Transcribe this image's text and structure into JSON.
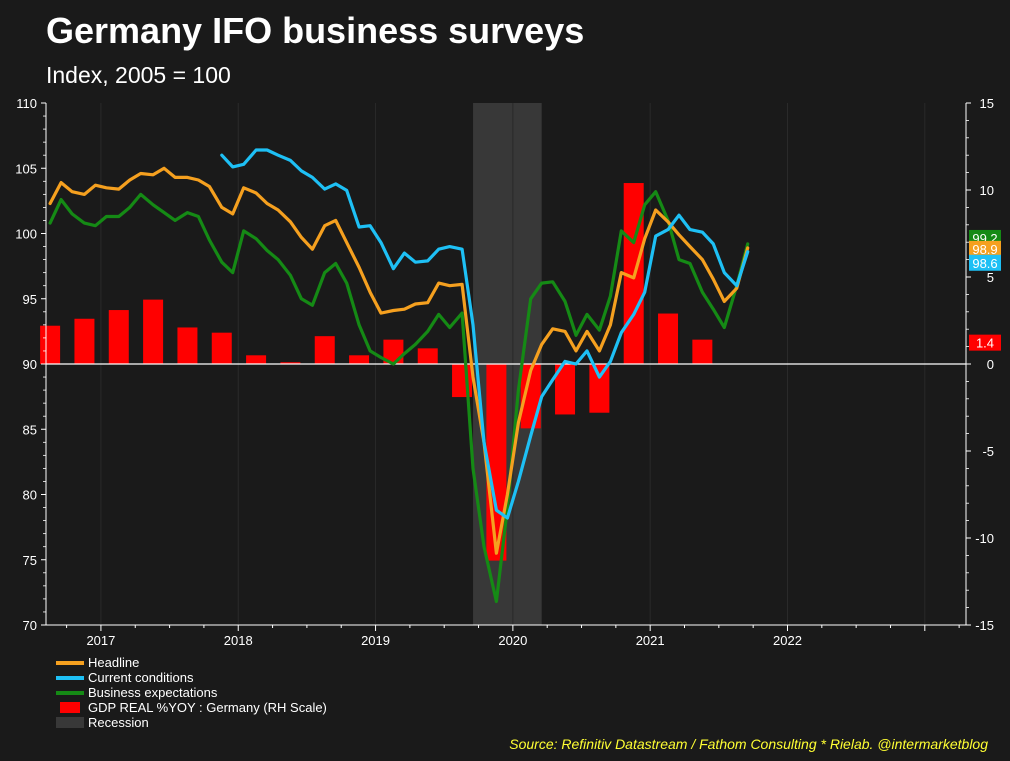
{
  "title": "Germany IFO business surveys",
  "subtitle": "Index, 2005 = 100",
  "source": "Source: Refinitiv Datastream / Fathom Consulting * Rielab. @intermarketblog",
  "chart_data": {
    "type": "line",
    "left_axis": {
      "min": 70,
      "max": 110,
      "ticks": [
        70,
        75,
        80,
        85,
        90,
        95,
        100,
        105,
        110
      ]
    },
    "right_axis": {
      "min": -15,
      "max": 15,
      "ticks": [
        -15,
        -10,
        -5,
        0,
        5,
        10,
        15
      ]
    },
    "x_axis": {
      "min": 2016.6,
      "max": 2023.3,
      "ticks": [
        2017,
        2018,
        2019,
        2020,
        2021,
        2022
      ],
      "tick_labels": [
        "2017",
        "2018",
        "2019",
        "2020",
        "2021",
        "2022"
      ]
    },
    "recession": {
      "label": "Recession",
      "start": 2019.71,
      "end": 2020.21,
      "color": "#383838"
    },
    "series": [
      {
        "name": "Headline",
        "color": "#f5a01f",
        "last_label": "98.9",
        "points": [
          [
            2016.63,
            102.3
          ],
          [
            2016.71,
            103.9
          ],
          [
            2016.79,
            103.2
          ],
          [
            2016.88,
            103.0
          ],
          [
            2016.96,
            103.7
          ],
          [
            2017.04,
            103.5
          ],
          [
            2017.13,
            103.4
          ],
          [
            2017.21,
            104.1
          ],
          [
            2017.29,
            104.6
          ],
          [
            2017.38,
            104.5
          ],
          [
            2017.46,
            105.0
          ],
          [
            2017.54,
            104.3
          ],
          [
            2017.63,
            104.3
          ],
          [
            2017.71,
            104.1
          ],
          [
            2017.79,
            103.6
          ],
          [
            2017.88,
            102.0
          ],
          [
            2017.96,
            101.5
          ],
          [
            2018.04,
            103.5
          ],
          [
            2018.13,
            103.1
          ],
          [
            2018.21,
            102.3
          ],
          [
            2018.29,
            101.8
          ],
          [
            2018.38,
            100.9
          ],
          [
            2018.46,
            99.7
          ],
          [
            2018.54,
            98.8
          ],
          [
            2018.63,
            100.6
          ],
          [
            2018.71,
            101.0
          ],
          [
            2018.79,
            99.3
          ],
          [
            2018.88,
            97.4
          ],
          [
            2018.96,
            95.5
          ],
          [
            2019.04,
            93.9
          ],
          [
            2019.13,
            94.1
          ],
          [
            2019.21,
            94.2
          ],
          [
            2019.29,
            94.6
          ],
          [
            2019.38,
            94.7
          ],
          [
            2019.46,
            96.2
          ],
          [
            2019.54,
            96.0
          ],
          [
            2019.63,
            96.1
          ],
          [
            2019.71,
            89.0
          ],
          [
            2019.79,
            84.0
          ],
          [
            2019.88,
            75.5
          ],
          [
            2019.96,
            80.0
          ],
          [
            2020.04,
            85.5
          ],
          [
            2020.13,
            89.5
          ],
          [
            2020.21,
            91.5
          ],
          [
            2020.29,
            92.7
          ],
          [
            2020.38,
            92.5
          ],
          [
            2020.46,
            91.0
          ],
          [
            2020.54,
            92.5
          ],
          [
            2020.63,
            91.0
          ],
          [
            2020.71,
            93.0
          ],
          [
            2020.79,
            97.0
          ],
          [
            2020.88,
            96.6
          ],
          [
            2020.96,
            99.6
          ],
          [
            2021.04,
            101.8
          ],
          [
            2021.13,
            100.9
          ],
          [
            2021.21,
            99.9
          ],
          [
            2021.29,
            99.0
          ],
          [
            2021.38,
            98.0
          ],
          [
            2021.46,
            96.5
          ],
          [
            2021.54,
            94.8
          ],
          [
            2021.63,
            95.8
          ],
          [
            2021.71,
            98.9
          ]
        ]
      },
      {
        "name": "Current conditions",
        "color": "#1ec0f5",
        "last_label": "98.6",
        "points": [
          [
            2017.88,
            106.0
          ],
          [
            2017.96,
            105.1
          ],
          [
            2018.04,
            105.3
          ],
          [
            2018.13,
            106.4
          ],
          [
            2018.21,
            106.4
          ],
          [
            2018.29,
            106.0
          ],
          [
            2018.38,
            105.6
          ],
          [
            2018.46,
            104.8
          ],
          [
            2018.54,
            104.3
          ],
          [
            2018.63,
            103.4
          ],
          [
            2018.71,
            103.8
          ],
          [
            2018.79,
            103.3
          ],
          [
            2018.88,
            100.5
          ],
          [
            2018.96,
            100.6
          ],
          [
            2019.04,
            99.3
          ],
          [
            2019.13,
            97.3
          ],
          [
            2019.21,
            98.5
          ],
          [
            2019.29,
            97.8
          ],
          [
            2019.38,
            97.9
          ],
          [
            2019.46,
            98.8
          ],
          [
            2019.54,
            99.0
          ],
          [
            2019.63,
            98.8
          ],
          [
            2019.71,
            93.0
          ],
          [
            2019.79,
            84.0
          ],
          [
            2019.88,
            78.8
          ],
          [
            2019.96,
            78.2
          ],
          [
            2020.04,
            81.0
          ],
          [
            2020.13,
            84.5
          ],
          [
            2020.21,
            87.5
          ],
          [
            2020.29,
            88.8
          ],
          [
            2020.38,
            90.2
          ],
          [
            2020.46,
            90.0
          ],
          [
            2020.54,
            91.0
          ],
          [
            2020.63,
            89.0
          ],
          [
            2020.71,
            90.2
          ],
          [
            2020.79,
            92.4
          ],
          [
            2020.88,
            93.8
          ],
          [
            2020.96,
            95.5
          ],
          [
            2021.04,
            99.8
          ],
          [
            2021.13,
            100.3
          ],
          [
            2021.21,
            101.4
          ],
          [
            2021.29,
            100.3
          ],
          [
            2021.38,
            100.1
          ],
          [
            2021.46,
            99.2
          ],
          [
            2021.54,
            97.0
          ],
          [
            2021.63,
            96.0
          ],
          [
            2021.71,
            98.6
          ]
        ]
      },
      {
        "name": "Business expectations",
        "color": "#158a15",
        "last_label": "99.2",
        "points": [
          [
            2016.63,
            100.8
          ],
          [
            2016.71,
            102.6
          ],
          [
            2016.79,
            101.5
          ],
          [
            2016.88,
            100.8
          ],
          [
            2016.96,
            100.6
          ],
          [
            2017.04,
            101.3
          ],
          [
            2017.13,
            101.3
          ],
          [
            2017.21,
            102.0
          ],
          [
            2017.29,
            103.0
          ],
          [
            2017.38,
            102.2
          ],
          [
            2017.46,
            101.6
          ],
          [
            2017.54,
            101.0
          ],
          [
            2017.63,
            101.6
          ],
          [
            2017.71,
            101.3
          ],
          [
            2017.79,
            99.5
          ],
          [
            2017.88,
            97.8
          ],
          [
            2017.96,
            97.0
          ],
          [
            2018.04,
            100.2
          ],
          [
            2018.13,
            99.6
          ],
          [
            2018.21,
            98.7
          ],
          [
            2018.29,
            98.0
          ],
          [
            2018.38,
            96.8
          ],
          [
            2018.46,
            95.0
          ],
          [
            2018.54,
            94.5
          ],
          [
            2018.63,
            97.0
          ],
          [
            2018.71,
            97.7
          ],
          [
            2018.79,
            96.2
          ],
          [
            2018.88,
            93.0
          ],
          [
            2018.96,
            91.0
          ],
          [
            2019.04,
            90.5
          ],
          [
            2019.13,
            90.0
          ],
          [
            2019.21,
            90.8
          ],
          [
            2019.29,
            91.5
          ],
          [
            2019.38,
            92.5
          ],
          [
            2019.46,
            93.8
          ],
          [
            2019.54,
            92.8
          ],
          [
            2019.63,
            93.9
          ],
          [
            2019.71,
            82.0
          ],
          [
            2019.79,
            76.0
          ],
          [
            2019.88,
            71.8
          ],
          [
            2019.96,
            79.0
          ],
          [
            2020.04,
            88.0
          ],
          [
            2020.13,
            95.0
          ],
          [
            2020.21,
            96.2
          ],
          [
            2020.29,
            96.3
          ],
          [
            2020.38,
            94.8
          ],
          [
            2020.46,
            92.2
          ],
          [
            2020.54,
            93.8
          ],
          [
            2020.63,
            92.6
          ],
          [
            2020.71,
            95.2
          ],
          [
            2020.79,
            100.2
          ],
          [
            2020.88,
            99.3
          ],
          [
            2020.96,
            102.2
          ],
          [
            2021.04,
            103.2
          ],
          [
            2021.13,
            101.0
          ],
          [
            2021.21,
            98.0
          ],
          [
            2021.29,
            97.7
          ],
          [
            2021.38,
            95.5
          ],
          [
            2021.46,
            94.2
          ],
          [
            2021.54,
            92.8
          ],
          [
            2021.63,
            96.0
          ],
          [
            2021.71,
            99.2
          ]
        ]
      }
    ],
    "bars": {
      "name": "GDP REAL %YOY : Germany (RH Scale)",
      "color": "#ff0000",
      "axis": "right",
      "last_label": "1.4",
      "points": [
        [
          2016.63,
          2.2
        ],
        [
          2016.88,
          2.6
        ],
        [
          2017.13,
          3.1
        ],
        [
          2017.38,
          3.7
        ],
        [
          2017.63,
          2.1
        ],
        [
          2017.88,
          1.8
        ],
        [
          2018.13,
          0.5
        ],
        [
          2018.38,
          0.1
        ],
        [
          2018.63,
          1.6
        ],
        [
          2018.88,
          0.5
        ],
        [
          2019.13,
          1.4
        ],
        [
          2019.38,
          0.9
        ],
        [
          2019.63,
          -1.9
        ],
        [
          2019.88,
          -11.3
        ],
        [
          2020.13,
          -3.7
        ],
        [
          2020.38,
          -2.9
        ],
        [
          2020.63,
          -2.8
        ],
        [
          2020.88,
          10.4
        ],
        [
          2021.13,
          2.9
        ],
        [
          2021.38,
          1.4
        ]
      ]
    },
    "legend_placement": "bottom-left",
    "grid": "vertical-only"
  },
  "legend": {
    "items": [
      {
        "label": "Headline",
        "color": "#f5a01f",
        "kind": "line"
      },
      {
        "label": "Current conditions",
        "color": "#1ec0f5",
        "kind": "line"
      },
      {
        "label": "Business expectations",
        "color": "#158a15",
        "kind": "line"
      },
      {
        "label": "GDP REAL %YOY : Germany (RH Scale)",
        "color": "#ff0000",
        "kind": "box"
      },
      {
        "label": "Recession",
        "color": "#383838",
        "kind": "box"
      }
    ]
  }
}
